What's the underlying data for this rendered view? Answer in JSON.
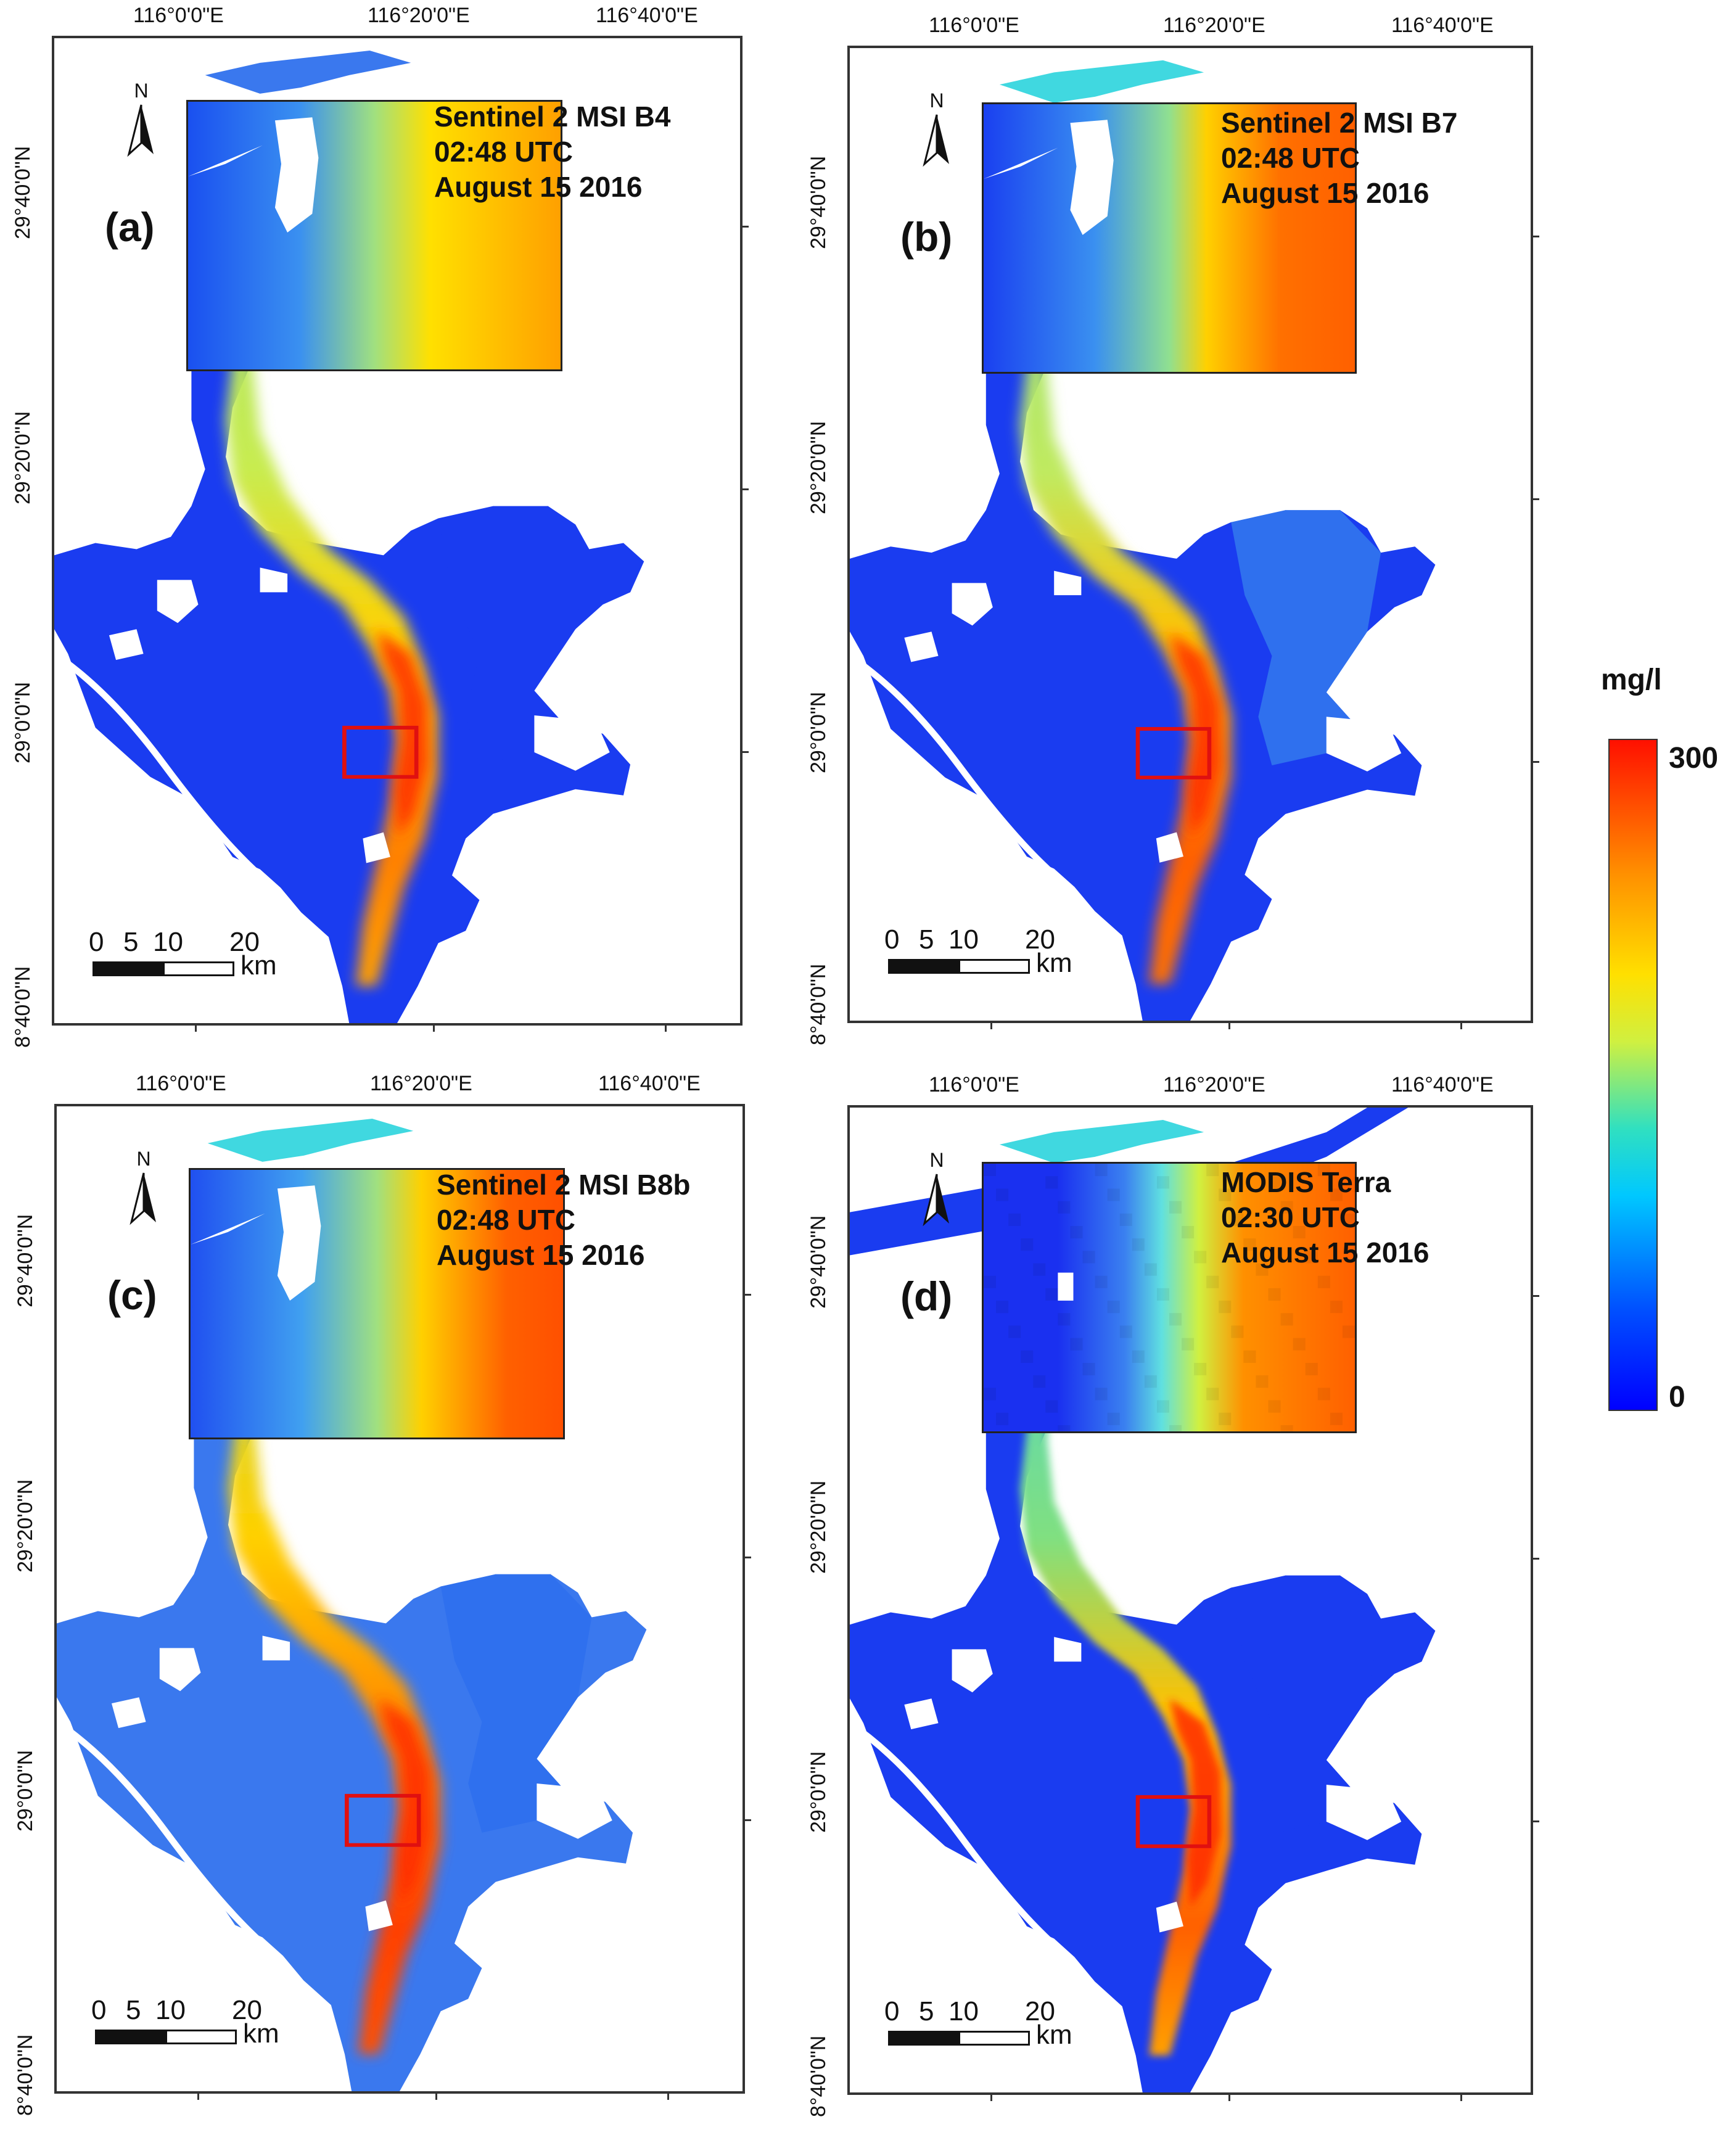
{
  "figure": {
    "colorbar": {
      "unit": "mg/l",
      "max_label": "300",
      "min_label": "0"
    },
    "panels": [
      {
        "id": "a",
        "label": "(a)",
        "title": [
          "Sentinel 2 MSI B4",
          "02:48 UTC",
          "August 15 2016"
        ],
        "style": "fine"
      },
      {
        "id": "b",
        "label": "(b)",
        "title": [
          "Sentinel 2 MSI B7",
          "02:48 UTC",
          "August 15 2016"
        ],
        "style": "fine"
      },
      {
        "id": "c",
        "label": "(c)",
        "title": [
          "Sentinel 2 MSI B8b",
          "02:48 UTC",
          "August 15 2016"
        ],
        "style": "fine"
      },
      {
        "id": "d",
        "label": "(d)",
        "title": [
          "MODIS Terra",
          "02:30 UTC",
          "August 15 2016"
        ],
        "style": "coarse"
      }
    ],
    "lon_labels": [
      "116°0'0\"E",
      "116°20'0\"E",
      "116°40'0\"E"
    ],
    "lat_labels": [
      "29°40'0\"N",
      "29°20'0\"N",
      "29°0'0\"N",
      "8°40'0\"N"
    ],
    "north": "N",
    "scale": {
      "ticks": [
        "0",
        "5",
        "10",
        "20"
      ],
      "unit": "km"
    },
    "colors": {
      "low": "#0000ff",
      "mid": "#ffe000",
      "high": "#ff1000",
      "box": "#e01010"
    }
  }
}
